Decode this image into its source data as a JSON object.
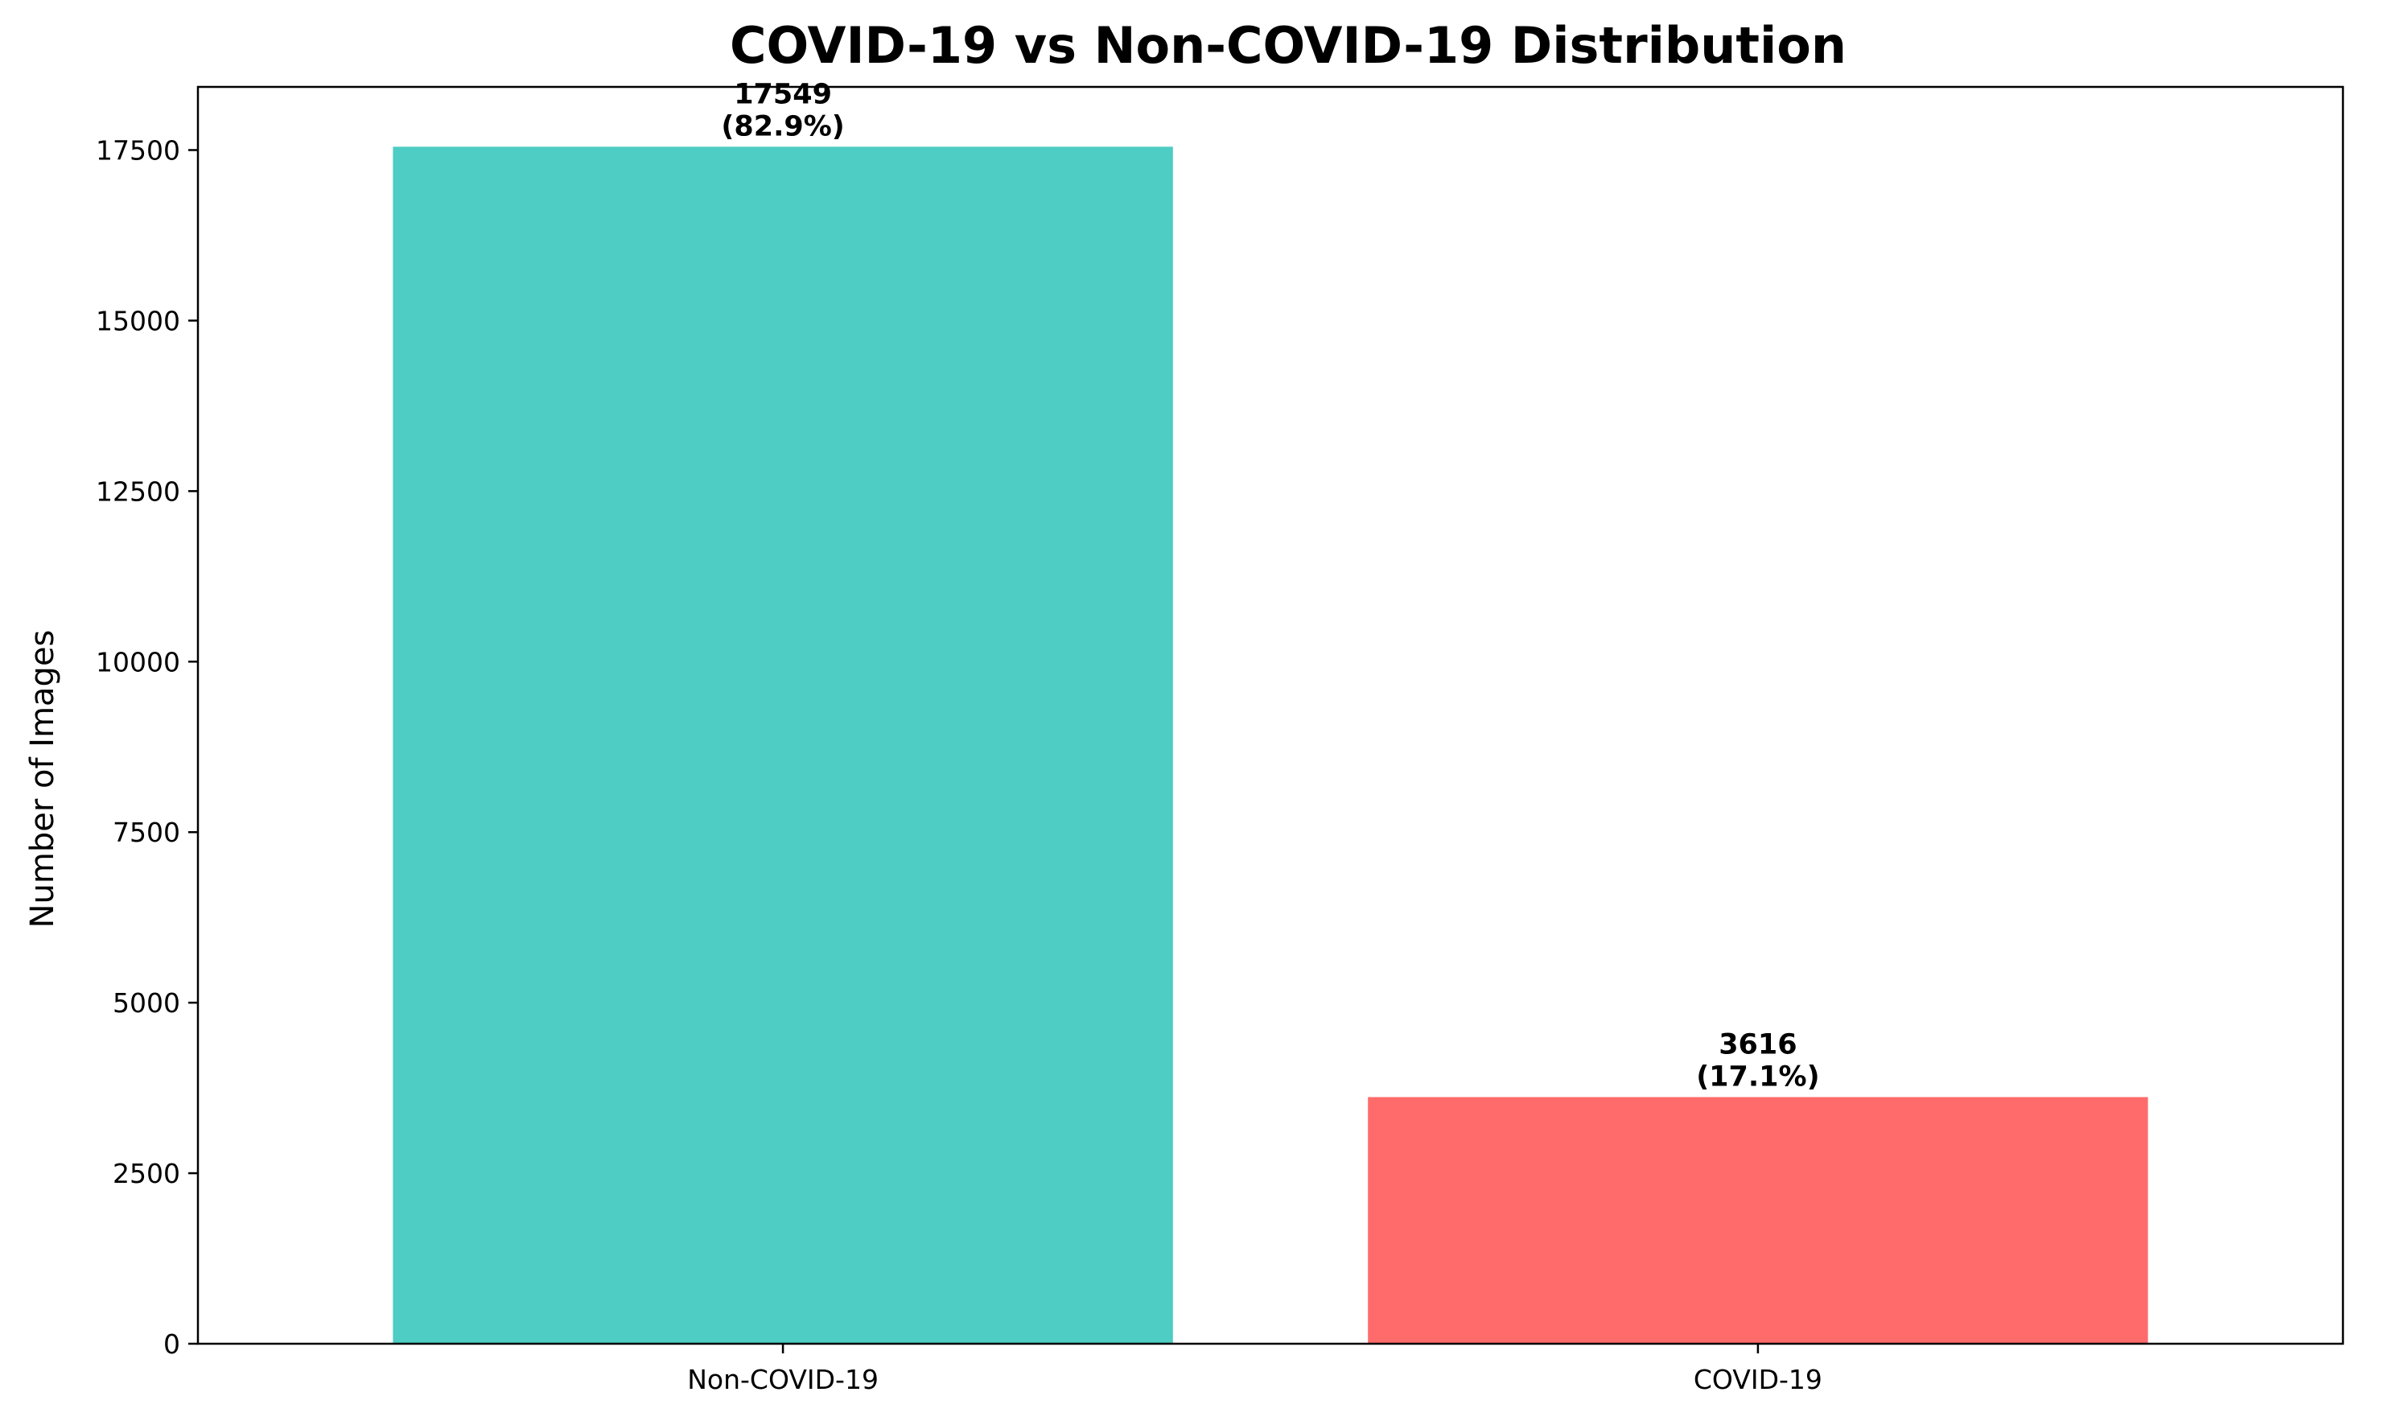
{
  "chart_data": {
    "type": "bar",
    "title": "COVID-19 vs Non-COVID-19 Distribution",
    "xlabel": "",
    "ylabel": "Number of Images",
    "categories": [
      "Non-COVID-19",
      "COVID-19"
    ],
    "values": [
      17549,
      3616
    ],
    "bar_labels": [
      {
        "count": "17549",
        "percent": "(82.9%)"
      },
      {
        "count": "3616",
        "percent": "(17.1%)"
      }
    ],
    "colors": [
      "#4ECDC4",
      "#FF6B6B"
    ],
    "ylim": [
      0,
      18426
    ],
    "yticks": [
      0,
      2500,
      5000,
      7500,
      10000,
      12500,
      15000,
      17500
    ],
    "grid": false,
    "legend": "none"
  }
}
